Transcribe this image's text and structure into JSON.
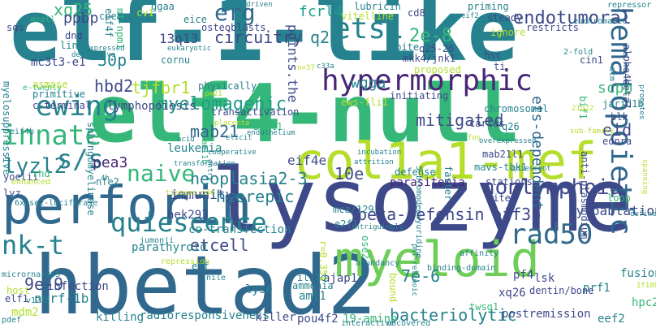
{
  "palette": {
    "purple": "#440154",
    "indigo": "#482777",
    "blue": "#3e4989",
    "steel": "#31688e",
    "teal": "#26828e",
    "sea": "#1f9e89",
    "green": "#35b779",
    "lime": "#6ece58",
    "lightlime": "#b5de2b",
    "yellow": "#fde725"
  },
  "words": [
    {
      "text": "elf-1-like",
      "color": "#26828e",
      "name": "word-elf-1-like"
    },
    {
      "text": "elf4-null",
      "color": "#35b779",
      "name": "word-elf4-null"
    },
    {
      "text": "lysozyme",
      "color": "#3e4989",
      "name": "word-lysozyme"
    },
    {
      "text": "hbetad2",
      "color": "#31688e",
      "name": "word-hbetad2"
    },
    {
      "text": "col1a1-mef",
      "color": "#b5de2b",
      "name": "word-col1a1-mef"
    },
    {
      "text": "perforin",
      "color": "#31688e",
      "name": "word-perforin"
    },
    {
      "text": "hematopoietic",
      "color": "#31688e",
      "name": "word-hematopoietic"
    },
    {
      "text": "myeloid",
      "color": "#6ece58",
      "name": "word-myeloid"
    },
    {
      "text": "hypermorphic",
      "color": "#482777",
      "name": "word-hypermorphic"
    },
    {
      "text": "ewing",
      "color": "#26828e",
      "name": "word-ewing"
    },
    {
      "text": "innate",
      "color": "#35b779",
      "name": "word-innate"
    },
    {
      "text": "quiescence",
      "color": "#26828e",
      "name": "word-quiescence"
    },
    {
      "text": "naive",
      "color": "#35b779",
      "name": "word-naive"
    },
    {
      "text": "ets1",
      "color": "#26828e",
      "name": "word-ets1"
    },
    {
      "text": "erg",
      "color": "#31688e",
      "name": "word-erg"
    },
    {
      "text": "nk-t",
      "color": "#26828e",
      "name": "word-nk-t"
    },
    {
      "text": "s/s",
      "color": "#26828e",
      "name": "word-s-s"
    },
    {
      "text": "rad50",
      "color": "#31688e",
      "name": "word-rad50"
    },
    {
      "text": "nonlymphoid",
      "color": "#3e4989",
      "name": "word-nonlymphoid"
    },
    {
      "text": "myelomagenic",
      "color": "#1f9e89",
      "name": "word-myelomagenic"
    },
    {
      "text": "endotumoral",
      "color": "#3e4989",
      "name": "word-endotumoral"
    },
    {
      "text": "lyzl2",
      "color": "#26828e",
      "name": "word-lyzl2"
    },
    {
      "text": "q22",
      "color": "#26828e",
      "name": "word-q22"
    },
    {
      "text": "2e-8",
      "color": "#35b779",
      "name": "word-2e-8"
    },
    {
      "text": "xq25",
      "color": "#35b779",
      "name": "word-xq25"
    },
    {
      "text": "etcell",
      "color": "#3e4989",
      "name": "word-etcell"
    },
    {
      "text": "hcerepic",
      "color": "#26828e",
      "name": "word-hcerepic"
    },
    {
      "text": "neoplasia2-3",
      "color": "#26828e",
      "name": "word-neoplasia2-3"
    },
    {
      "text": "7e-6",
      "color": "#26828e",
      "name": "word-7e-6"
    },
    {
      "text": "9e-9",
      "color": "#3e4989",
      "name": "word-9e-9"
    },
    {
      "text": "beta-defensin",
      "color": "#3e4989",
      "name": "word-beta-defensin"
    },
    {
      "text": "eif3b",
      "color": "#3e4989",
      "name": "word-eif3b"
    },
    {
      "text": "eid",
      "color": "#3e4989",
      "name": "word-eid"
    },
    {
      "text": "ets-dependent",
      "color": "#31688e",
      "name": "word-ets-dependent"
    },
    {
      "text": "mitigated",
      "color": "#3e4989",
      "name": "word-mitigated"
    },
    {
      "text": "bacteriolytic",
      "color": "#26828e",
      "name": "word-bacteriolytic"
    },
    {
      "text": "cytoablation",
      "color": "#3e4989",
      "name": "word-cytoablation"
    },
    {
      "text": "points.the",
      "color": "#3e4989",
      "name": "word-points-the"
    },
    {
      "text": "circuitry",
      "color": "#3e4989",
      "name": "word-circuitry"
    },
    {
      "text": "wgga",
      "color": "#26828e",
      "name": "word-wgga"
    },
    {
      "text": "fcrl4",
      "color": "#1f9e89",
      "name": "word-fcrl4"
    },
    {
      "text": "mab21",
      "color": "#31688e",
      "name": "word-mab21"
    },
    {
      "text": "pea3",
      "color": "#482777",
      "name": "word-pea3"
    },
    {
      "text": "10e",
      "color": "#3e4989",
      "name": "word-10e"
    },
    {
      "text": "eif4e",
      "color": "#3e4989",
      "name": "word-eif4e"
    },
    {
      "text": "tjfbr1",
      "color": "#b5de2b",
      "name": "word-tjfbr1"
    },
    {
      "text": "30p",
      "color": "#26828e",
      "name": "word-30p"
    },
    {
      "text": "hbd2",
      "color": "#3e4989",
      "name": "word-hbd2"
    },
    {
      "text": "ppbp",
      "color": "#3e4989",
      "name": "word-ppbp"
    },
    {
      "text": "13q13",
      "color": "#3e4989",
      "name": "word-13q13"
    },
    {
      "text": "scpp",
      "color": "#35b779",
      "name": "word-scpp"
    },
    {
      "text": "parasitemia",
      "color": "#482777",
      "name": "word-parasitemia"
    },
    {
      "text": "immunity",
      "color": "#3e4989",
      "name": "word-immunity"
    },
    {
      "text": "leukemia",
      "color": "#26828e",
      "name": "word-leukemia"
    },
    {
      "text": "lymphopoiesis",
      "color": "#3e4989",
      "name": "word-lymphopoiesis"
    },
    {
      "text": "nerf-1b",
      "color": "#26828e",
      "name": "word-nerf-1b"
    },
    {
      "text": "parathyroid",
      "color": "#26828e",
      "name": "word-parathyroid"
    },
    {
      "text": "co-transfection",
      "color": "#26828e",
      "name": "word-co-transfection"
    },
    {
      "text": "hek293",
      "color": "#3e4989",
      "name": "word-hek293"
    },
    {
      "text": "radioresponsiveness",
      "color": "#26828e",
      "name": "word-radioresponsiveness"
    },
    {
      "text": "killing",
      "color": "#26828e",
      "name": "word-killing"
    },
    {
      "text": "killer",
      "color": "#3e4989",
      "name": "word-killer"
    },
    {
      "text": "pou4f2",
      "color": "#3e4989",
      "name": "word-pou4f2"
    },
    {
      "text": "19-amino",
      "color": "#35b779",
      "name": "word-19-amino"
    },
    {
      "text": "postremission",
      "color": "#3e4989",
      "name": "word-postremission"
    },
    {
      "text": "xq26",
      "color": "#3e4989",
      "name": "word-xq26"
    },
    {
      "text": "eef2",
      "color": "#26828e",
      "name": "word-eef2"
    },
    {
      "text": "hpc2",
      "color": "#35b779",
      "name": "word-hpc2"
    },
    {
      "text": "fusion",
      "color": "#26828e",
      "name": "word-fusion"
    },
    {
      "text": "lsk",
      "color": "#3e4989",
      "name": "word-lsk"
    },
    {
      "text": "prf1",
      "color": "#26828e",
      "name": "word-prf1"
    },
    {
      "text": "pf4",
      "color": "#3e4989",
      "name": "word-pf4"
    },
    {
      "text": "twsg1",
      "color": "#35b779",
      "name": "word-twsg1"
    },
    {
      "text": "dentin/bone",
      "color": "#3e4989",
      "name": "word-dentin-bone"
    },
    {
      "text": "aml1",
      "color": "#26828e",
      "name": "word-aml1"
    },
    {
      "text": "ajap1",
      "color": "#3e4989",
      "name": "word-ajap1"
    },
    {
      "text": "lyse",
      "color": "#26828e",
      "name": "word-lyse"
    },
    {
      "text": "mdm2",
      "color": "#b5de2b",
      "name": "word-mdm2"
    },
    {
      "text": "infection",
      "color": "#3e4989",
      "name": "word-infection"
    },
    {
      "text": "elf1",
      "color": "#3e4989",
      "name": "word-elf1"
    },
    {
      "text": "host",
      "color": "#b5de2b",
      "name": "word-host"
    },
    {
      "text": "yoelii",
      "color": "#3e4989",
      "name": "word-yoelii"
    },
    {
      "text": "rhd",
      "color": "#35b779",
      "name": "word-rhd"
    },
    {
      "text": "lyz",
      "color": "#3e4989",
      "name": "word-lyz"
    },
    {
      "text": "nfe2",
      "color": "#26828e",
      "name": "word-nfe2"
    },
    {
      "text": "eif",
      "color": "#26828e",
      "name": "word-eif"
    },
    {
      "text": "primitive",
      "color": "#26828e",
      "name": "word-primitive"
    },
    {
      "text": "c-terminal",
      "color": "#3e4989",
      "name": "word-c-terminal"
    },
    {
      "text": "e-twenty",
      "color": "#35b779",
      "name": "word-e-twenty"
    },
    {
      "text": "asmase",
      "color": "#b5de2b",
      "name": "word-asmase"
    },
    {
      "text": "mc3t3-e1",
      "color": "#3e4989",
      "name": "word-mc3t3-e1"
    },
    {
      "text": "line1",
      "color": "#26828e",
      "name": "word-line1"
    },
    {
      "text": "dnd",
      "color": "#3e4989",
      "name": "word-dnd"
    },
    {
      "text": "sgs",
      "color": "#3e4989",
      "name": "word-sgs"
    },
    {
      "text": "mrell",
      "color": "#35b779",
      "name": "word-mrell"
    },
    {
      "text": "cpeb",
      "color": "#26828e",
      "name": "word-cpeb"
    },
    {
      "text": "cv1",
      "color": "#b5de2b",
      "name": "word-cv1"
    },
    {
      "text": "ggaa",
      "color": "#26828e",
      "name": "word-ggaa"
    },
    {
      "text": "eice",
      "color": "#26828e",
      "name": "word-eice"
    },
    {
      "text": "osteoblasts",
      "color": "#3e4989",
      "name": "word-osteoblasts"
    },
    {
      "text": "sooner",
      "color": "#26828e",
      "name": "word-sooner"
    },
    {
      "text": "cornu",
      "color": "#26828e",
      "name": "word-cornu"
    },
    {
      "text": "physically",
      "color": "#26828e",
      "name": "word-physically"
    },
    {
      "text": "transactivation",
      "color": "#3e4989",
      "name": "word-transactivation"
    },
    {
      "text": "3t3l1",
      "color": "#35b779",
      "name": "word-3t3l1"
    },
    {
      "text": "lubricin",
      "color": "#26828e",
      "name": "word-lubricin"
    },
    {
      "text": "cd8",
      "color": "#3e4989",
      "name": "word-cd8"
    },
    {
      "text": "vitelline",
      "color": "#b5de2b",
      "name": "word-vitelline"
    },
    {
      "text": "spite",
      "color": "#26828e",
      "name": "word-spite"
    },
    {
      "text": "q25-26",
      "color": "#3e4989",
      "name": "word-q25-26"
    },
    {
      "text": "mkk4/jnk1",
      "color": "#3e4989",
      "name": "word-mkk4-jnk1"
    },
    {
      "text": "priming",
      "color": "#26828e",
      "name": "word-priming"
    },
    {
      "text": "steady",
      "color": "#3e4989",
      "name": "word-steady"
    },
    {
      "text": "restricts",
      "color": "#3e4989",
      "name": "word-restricts"
    },
    {
      "text": "ignore",
      "color": "#b5de2b",
      "name": "word-ignore"
    },
    {
      "text": "hsc",
      "color": "#3e4989",
      "name": "word-hsc"
    },
    {
      "text": "ti",
      "color": "#3e4989",
      "name": "word-ti"
    },
    {
      "text": "cin1",
      "color": "#3e4989",
      "name": "word-cin1"
    },
    {
      "text": "proposed",
      "color": "#b5de2b",
      "name": "word-proposed"
    },
    {
      "text": "initiating",
      "color": "#3e4989",
      "name": "word-initiating"
    },
    {
      "text": "ews-fli1",
      "color": "#b5de2b",
      "name": "word-ews-fli1"
    },
    {
      "text": "chromosomal",
      "color": "#26828e",
      "name": "word-chromosomal"
    },
    {
      "text": "carles",
      "color": "#3e4989",
      "name": "word-carles"
    },
    {
      "text": "q26",
      "color": "#26828e",
      "name": "word-q26"
    },
    {
      "text": "ednra",
      "color": "#3e4989",
      "name": "word-ednra"
    },
    {
      "text": "blk",
      "color": "#3e4989",
      "name": "word-blk"
    },
    {
      "text": "jarid1b",
      "color": "#26828e",
      "name": "word-jarid1b"
    },
    {
      "text": "bif1",
      "color": "#35b779",
      "name": "word-bif1"
    },
    {
      "text": "stations",
      "color": "#3e4989",
      "name": "word-stations"
    },
    {
      "text": "mavs-tbk1",
      "color": "#26828e",
      "name": "word-mavs-tbk1"
    },
    {
      "text": "mab21l1",
      "color": "#3e4989",
      "name": "word-mab21l1"
    },
    {
      "text": "defense",
      "color": "#26828e",
      "name": "word-defense"
    },
    {
      "text": "sites",
      "color": "#3e4989",
      "name": "word-sites"
    },
    {
      "text": "loop",
      "color": "#35b779",
      "name": "word-loop"
    },
    {
      "text": "sphingomyelinase",
      "color": "#26828e",
      "name": "word-sphingomyelinase"
    },
    {
      "text": "myelosuppressive",
      "color": "#26828e",
      "name": "word-myelosuppressive"
    },
    {
      "text": "anti-plasmodium",
      "color": "#3e4989",
      "name": "word-anti-plasmodium"
    },
    {
      "text": "alpha4beta7",
      "color": "#3e4989",
      "name": "word-alpha4beta7"
    },
    {
      "text": "aml1b",
      "color": "#35b779",
      "name": "word-aml1b"
    },
    {
      "text": "faster",
      "color": "#26828e",
      "name": "word-faster"
    },
    {
      "text": "bound",
      "color": "#b5de2b",
      "name": "word-bound"
    },
    {
      "text": "ose2",
      "color": "#35b779",
      "name": "word-ose2"
    },
    {
      "text": "5-bromodeoxyuridine",
      "color": "#26828e",
      "name": "word-5-bromodeoxyuridine"
    },
    {
      "text": "mca/129",
      "color": "#26828e",
      "name": "word-mca-129"
    },
    {
      "text": "il17d",
      "color": "#26828e",
      "name": "word-il17d"
    },
    {
      "text": "ammonia",
      "color": "#26828e",
      "name": "word-ammonia"
    },
    {
      "text": "e2f1",
      "color": "#26828e",
      "name": "word-e2f1"
    },
    {
      "text": "mt-npm1",
      "color": "#35b779",
      "name": "word-mt-npm1"
    },
    {
      "text": "eif4f",
      "color": "#26828e",
      "name": "word-eif4f"
    },
    {
      "text": "eif4b",
      "color": "#26828e",
      "name": "word-eif4b"
    },
    {
      "text": "6xose2-luciferase",
      "color": "#26828e",
      "name": "word-6xose2-luciferase"
    },
    {
      "text": "enhanced",
      "color": "#b5de2b",
      "name": "word-enhanced"
    },
    {
      "text": "jumonji",
      "color": "#26828e",
      "name": "word-jumonji"
    },
    {
      "text": "microrna-365",
      "color": "#26828e",
      "name": "word-microrna-365"
    },
    {
      "text": "repression",
      "color": "#b5de2b",
      "name": "word-repression"
    },
    {
      "text": "nile",
      "color": "#26828e",
      "name": "word-nile"
    },
    {
      "text": "r=0.351",
      "color": "#b5de2b",
      "name": "word-r-0-351"
    },
    {
      "text": "abundancy",
      "color": "#26828e",
      "name": "word-abundancy"
    },
    {
      "text": "binding-domain",
      "color": "#26828e",
      "name": "word-binding-domain"
    },
    {
      "text": "affinity",
      "color": "#26828e",
      "name": "word-affinity"
    },
    {
      "text": "interactive",
      "color": "#26828e",
      "name": "word-interactive"
    },
    {
      "text": "uncovered",
      "color": "#26828e",
      "name": "word-uncovered"
    },
    {
      "text": "pdef",
      "color": "#26828e",
      "name": "word-pdef"
    },
    {
      "text": "v12",
      "color": "#26828e",
      "name": "word-v12"
    },
    {
      "text": "1f188",
      "color": "#b5de2b",
      "name": "word-1f188"
    },
    {
      "text": "define",
      "color": "#26828e",
      "name": "word-define"
    },
    {
      "text": "sub-family",
      "color": "#b5de2b",
      "name": "word-sub-family"
    },
    {
      "text": "promotes",
      "color": "#26828e",
      "name": "word-promotes"
    },
    {
      "text": "repressor",
      "color": "#26828e",
      "name": "word-repressor"
    },
    {
      "text": "euchromatic",
      "color": "#26828e",
      "name": "word-euchromatic"
    },
    {
      "text": "2-fold",
      "color": "#26828e",
      "name": "word-2-fold"
    },
    {
      "text": "21q22",
      "color": "#b5de2b",
      "name": "word-21q22"
    },
    {
      "text": "atm",
      "color": "#26828e",
      "name": "word-atm"
    },
    {
      "text": "eif2",
      "color": "#26828e",
      "name": "word-eif2"
    },
    {
      "text": "pdgf-driven",
      "color": "#26828e",
      "name": "word-pdgf-driven"
    },
    {
      "text": "eukaryotic",
      "color": "#26828e",
      "name": "word-eukaryotic"
    },
    {
      "text": "coexpressed",
      "color": "#26828e",
      "name": "word-coexpressed"
    },
    {
      "text": "definitive",
      "color": "#26828e",
      "name": "word-definitive"
    },
    {
      "text": "placenta",
      "color": "#b5de2b",
      "name": "word-placenta"
    },
    {
      "text": "endothelium",
      "color": "#26828e",
      "name": "word-endothelium"
    },
    {
      "text": "elicit",
      "color": "#26828e",
      "name": "word-elicit"
    },
    {
      "text": "acid",
      "color": "#26828e",
      "name": "word-acid"
    },
    {
      "text": "cooperative",
      "color": "#26828e",
      "name": "word-cooperative"
    },
    {
      "text": "transformation",
      "color": "#26828e",
      "name": "word-transformation"
    },
    {
      "text": "entry",
      "color": "#26828e",
      "name": "word-entry"
    },
    {
      "text": "incubation",
      "color": "#26828e",
      "name": "word-incubation"
    },
    {
      "text": "attrition",
      "color": "#26828e",
      "name": "word-attrition"
    },
    {
      "text": "fos",
      "color": "#b5de2b",
      "name": "word-fos"
    },
    {
      "text": "overexpressed",
      "color": "#26828e",
      "name": "word-overexpressed"
    },
    {
      "text": "quiescent",
      "color": "#26828e",
      "name": "word-quiescent"
    },
    {
      "text": "intriguingly",
      "color": "#26828e",
      "name": "word-intriguingly"
    },
    {
      "text": "pml-retinoic",
      "color": "#26828e",
      "name": "word-pml-retinoic"
    },
    {
      "text": "tissues.cd4",
      "color": "#b5de2b",
      "name": "word-tissues-cd4"
    },
    {
      "text": "4h",
      "color": "#26828e",
      "name": "word-4h"
    },
    {
      "text": "c33a",
      "color": "#26828e",
      "name": "word-c33a"
    },
    {
      "text": "n=37",
      "color": "#b5de2b",
      "name": "word-n-37"
    },
    {
      "text": "pm21",
      "color": "#b5de2b",
      "name": "word-pm21"
    },
    {
      "text": "spanning",
      "color": "#b5de2b",
      "name": "word-spanning"
    }
  ]
}
